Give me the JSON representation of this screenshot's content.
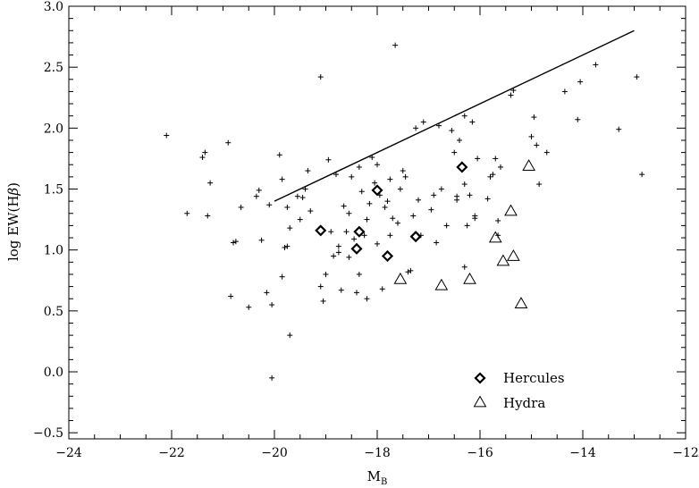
{
  "chart_data": {
    "type": "scatter",
    "title": "",
    "xlabel": "M",
    "xlabel_sub": "B",
    "ylabel": "log EW(H",
    "ylabel_greek": "β",
    "ylabel_close": ")",
    "xlim": [
      -24,
      -12
    ],
    "ylim": [
      -0.55,
      3.0
    ],
    "x_ticks": [
      -24,
      -22,
      -20,
      -18,
      -16,
      -14,
      -12
    ],
    "x_tick_labels": [
      "−24",
      "−22",
      "−20",
      "−18",
      "−16",
      "−14",
      "−12"
    ],
    "y_ticks": [
      -0.5,
      0.0,
      0.5,
      1.0,
      1.5,
      2.0,
      2.5,
      3.0
    ],
    "y_tick_labels": [
      "−0.5",
      "0.0",
      "0.5",
      "1.0",
      "1.5",
      "2.0",
      "2.5",
      "3.0"
    ],
    "grid": false,
    "legend_position": "bottom-right",
    "reference_line": {
      "x": [
        -20.0,
        -13.0
      ],
      "y": [
        1.4,
        2.8
      ]
    },
    "series": [
      {
        "name": "",
        "marker": "plus",
        "points": [
          [
            -22.1,
            1.94
          ],
          [
            -21.7,
            1.3
          ],
          [
            -21.4,
            1.76
          ],
          [
            -21.35,
            1.8
          ],
          [
            -21.3,
            1.28
          ],
          [
            -21.25,
            1.55
          ],
          [
            -20.9,
            1.88
          ],
          [
            -20.85,
            0.62
          ],
          [
            -20.8,
            1.06
          ],
          [
            -20.75,
            1.07
          ],
          [
            -20.65,
            1.35
          ],
          [
            -20.5,
            0.53
          ],
          [
            -20.35,
            1.44
          ],
          [
            -20.3,
            1.49
          ],
          [
            -20.25,
            1.08
          ],
          [
            -20.15,
            0.65
          ],
          [
            -20.1,
            1.37
          ],
          [
            -20.05,
            0.55
          ],
          [
            -20.05,
            -0.05
          ],
          [
            -19.9,
            1.78
          ],
          [
            -19.85,
            1.58
          ],
          [
            -19.85,
            0.78
          ],
          [
            -19.8,
            1.02
          ],
          [
            -19.75,
            1.35
          ],
          [
            -19.75,
            1.03
          ],
          [
            -19.7,
            1.18
          ],
          [
            -19.7,
            0.3
          ],
          [
            -19.55,
            1.44
          ],
          [
            -19.5,
            1.25
          ],
          [
            -19.45,
            1.43
          ],
          [
            -19.4,
            1.5
          ],
          [
            -19.35,
            1.65
          ],
          [
            -19.3,
            1.32
          ],
          [
            -19.1,
            2.42
          ],
          [
            -19.1,
            0.7
          ],
          [
            -19.05,
            0.58
          ],
          [
            -19.0,
            0.8
          ],
          [
            -18.95,
            1.74
          ],
          [
            -18.9,
            1.15
          ],
          [
            -18.85,
            0.95
          ],
          [
            -18.8,
            1.62
          ],
          [
            -18.75,
            1.03
          ],
          [
            -18.75,
            0.98
          ],
          [
            -18.7,
            0.67
          ],
          [
            -18.65,
            1.36
          ],
          [
            -18.6,
            1.15
          ],
          [
            -18.55,
            1.3
          ],
          [
            -18.55,
            0.94
          ],
          [
            -18.5,
            1.6
          ],
          [
            -18.45,
            1.09
          ],
          [
            -18.4,
            0.65
          ],
          [
            -18.35,
            1.68
          ],
          [
            -18.35,
            0.8
          ],
          [
            -18.3,
            1.48
          ],
          [
            -18.25,
            1.12
          ],
          [
            -18.2,
            1.25
          ],
          [
            -18.2,
            0.6
          ],
          [
            -18.15,
            1.38
          ],
          [
            -18.1,
            1.76
          ],
          [
            -18.05,
            1.55
          ],
          [
            -18.0,
            1.05
          ],
          [
            -18.0,
            1.7
          ],
          [
            -17.95,
            1.45
          ],
          [
            -17.9,
            0.68
          ],
          [
            -17.85,
            1.35
          ],
          [
            -17.8,
            1.4
          ],
          [
            -17.75,
            1.12
          ],
          [
            -17.75,
            1.58
          ],
          [
            -17.7,
            1.26
          ],
          [
            -17.65,
            2.68
          ],
          [
            -17.6,
            1.22
          ],
          [
            -17.55,
            1.5
          ],
          [
            -17.5,
            1.65
          ],
          [
            -17.45,
            1.6
          ],
          [
            -17.4,
            0.82
          ],
          [
            -17.35,
            0.83
          ],
          [
            -17.3,
            1.28
          ],
          [
            -17.25,
            2.0
          ],
          [
            -17.2,
            1.41
          ],
          [
            -17.15,
            1.12
          ],
          [
            -17.1,
            2.05
          ],
          [
            -16.95,
            1.33
          ],
          [
            -16.9,
            1.45
          ],
          [
            -16.85,
            1.06
          ],
          [
            -16.8,
            2.02
          ],
          [
            -16.75,
            1.5
          ],
          [
            -16.65,
            1.2
          ],
          [
            -16.55,
            1.98
          ],
          [
            -16.5,
            1.8
          ],
          [
            -16.45,
            1.44
          ],
          [
            -16.45,
            1.41
          ],
          [
            -16.4,
            1.9
          ],
          [
            -16.3,
            1.54
          ],
          [
            -16.3,
            2.1
          ],
          [
            -16.3,
            0.86
          ],
          [
            -16.25,
            1.2
          ],
          [
            -16.2,
            1.45
          ],
          [
            -16.15,
            2.05
          ],
          [
            -16.1,
            1.26
          ],
          [
            -16.1,
            1.28
          ],
          [
            -16.05,
            1.75
          ],
          [
            -15.85,
            1.42
          ],
          [
            -15.8,
            1.6
          ],
          [
            -15.75,
            1.62
          ],
          [
            -15.7,
            1.75
          ],
          [
            -15.65,
            1.24
          ],
          [
            -15.65,
            1.12
          ],
          [
            -15.6,
            1.68
          ],
          [
            -15.4,
            2.27
          ],
          [
            -15.35,
            2.31
          ],
          [
            -15.0,
            1.93
          ],
          [
            -14.95,
            2.09
          ],
          [
            -14.9,
            1.86
          ],
          [
            -14.85,
            1.54
          ],
          [
            -14.7,
            1.8
          ],
          [
            -14.35,
            2.3
          ],
          [
            -14.05,
            2.38
          ],
          [
            -14.1,
            2.07
          ],
          [
            -13.75,
            2.52
          ],
          [
            -13.3,
            1.99
          ],
          [
            -12.95,
            2.42
          ],
          [
            -12.85,
            1.62
          ]
        ]
      },
      {
        "name": "Hercules",
        "marker": "diamond",
        "points": [
          [
            -19.1,
            1.16
          ],
          [
            -18.4,
            1.01
          ],
          [
            -18.35,
            1.15
          ],
          [
            -18.0,
            1.49
          ],
          [
            -17.8,
            0.95
          ],
          [
            -17.25,
            1.11
          ],
          [
            -16.35,
            1.68
          ]
        ]
      },
      {
        "name": "Hydra",
        "marker": "triangle",
        "points": [
          [
            -17.55,
            0.76
          ],
          [
            -16.75,
            0.71
          ],
          [
            -16.2,
            0.76
          ],
          [
            -15.7,
            1.1
          ],
          [
            -15.55,
            0.91
          ],
          [
            -15.4,
            1.32
          ],
          [
            -15.35,
            0.95
          ],
          [
            -15.2,
            0.56
          ],
          [
            -15.05,
            1.69
          ]
        ]
      }
    ]
  }
}
